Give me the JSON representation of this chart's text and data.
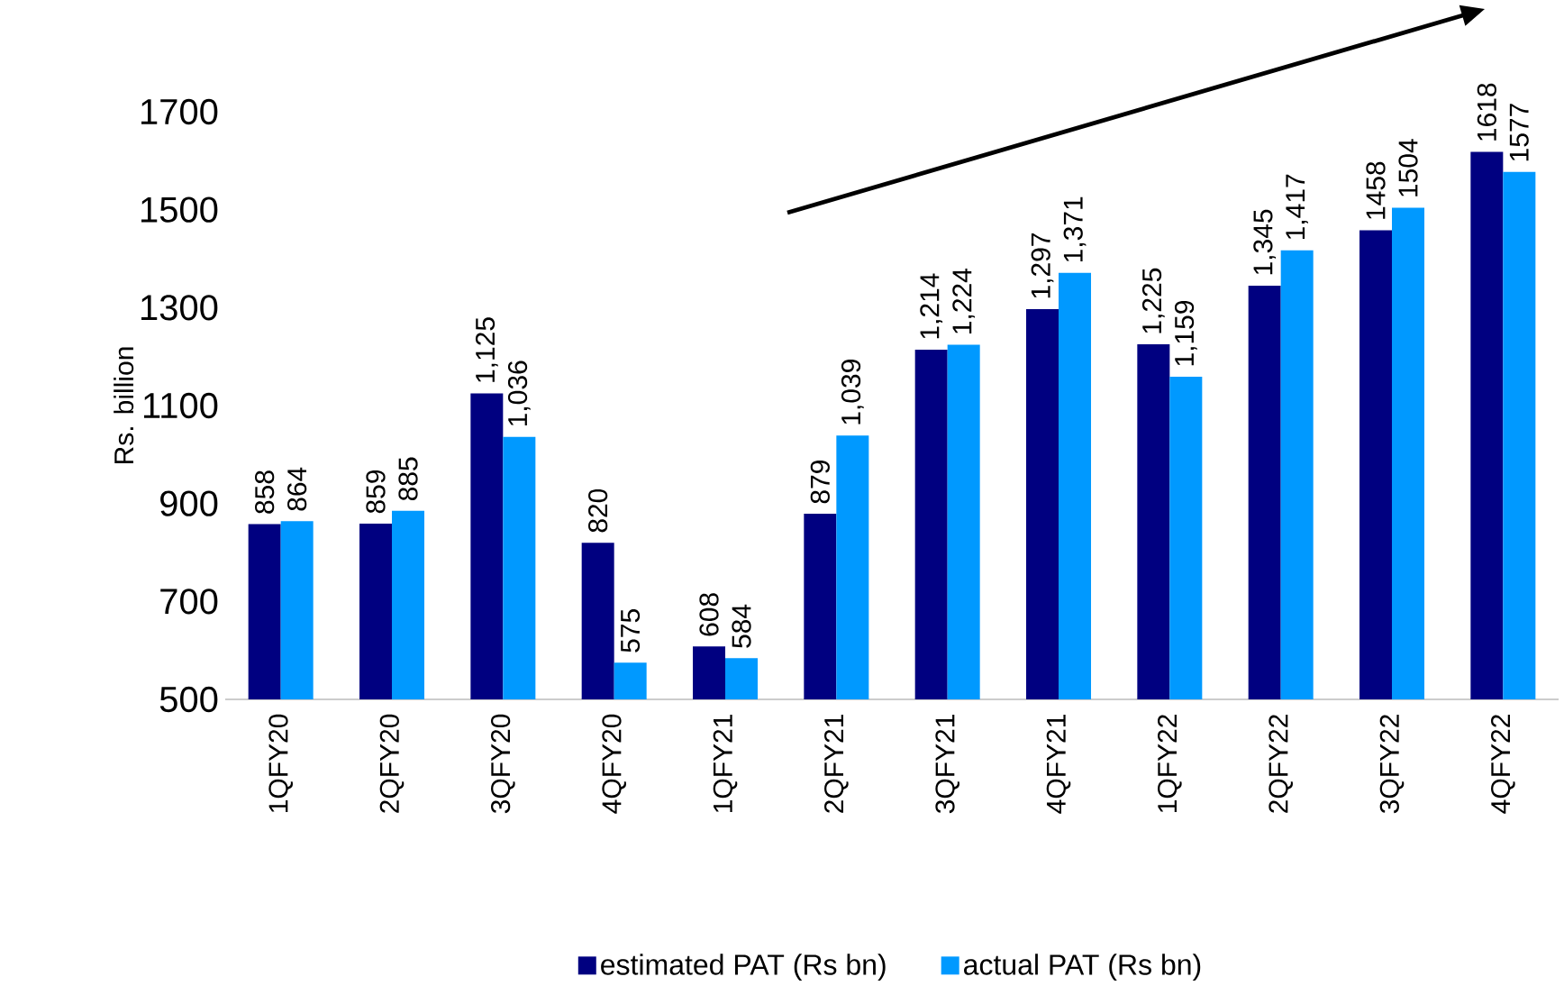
{
  "chart_data": {
    "type": "bar",
    "ylabel": "Rs. billion",
    "categories": [
      "1QFY20",
      "2QFY20",
      "3QFY20",
      "4QFY20",
      "1QFY21",
      "2QFY21",
      "3QFY21",
      "4QFY21",
      "1QFY22",
      "2QFY22",
      "3QFY22",
      "4QFY22"
    ],
    "series": [
      {
        "name": "estimated PAT (Rs bn)",
        "color": "#000080",
        "values": [
          858,
          859,
          1125,
          820,
          608,
          879,
          1214,
          1297,
          1225,
          1345,
          1458,
          1618
        ],
        "value_labels": [
          "858",
          "859",
          "1,125",
          "820",
          "608",
          "879",
          "1,214",
          "1,297",
          "1,225",
          "1,345",
          "1458",
          "1618"
        ]
      },
      {
        "name": "actual PAT (Rs bn)",
        "color": "#0099ff",
        "values": [
          864,
          885,
          1036,
          575,
          584,
          1039,
          1224,
          1371,
          1159,
          1417,
          1504,
          1577
        ],
        "value_labels": [
          "864",
          "885",
          "1,036",
          "575",
          "584",
          "1,039",
          "1,224",
          "1,371",
          "1,159",
          "1,417",
          "1504",
          "1577"
        ]
      }
    ],
    "ylim": [
      500,
      1700
    ],
    "yticks": [
      500,
      700,
      900,
      1100,
      1300,
      1500,
      1700
    ],
    "legend": "bottom"
  }
}
